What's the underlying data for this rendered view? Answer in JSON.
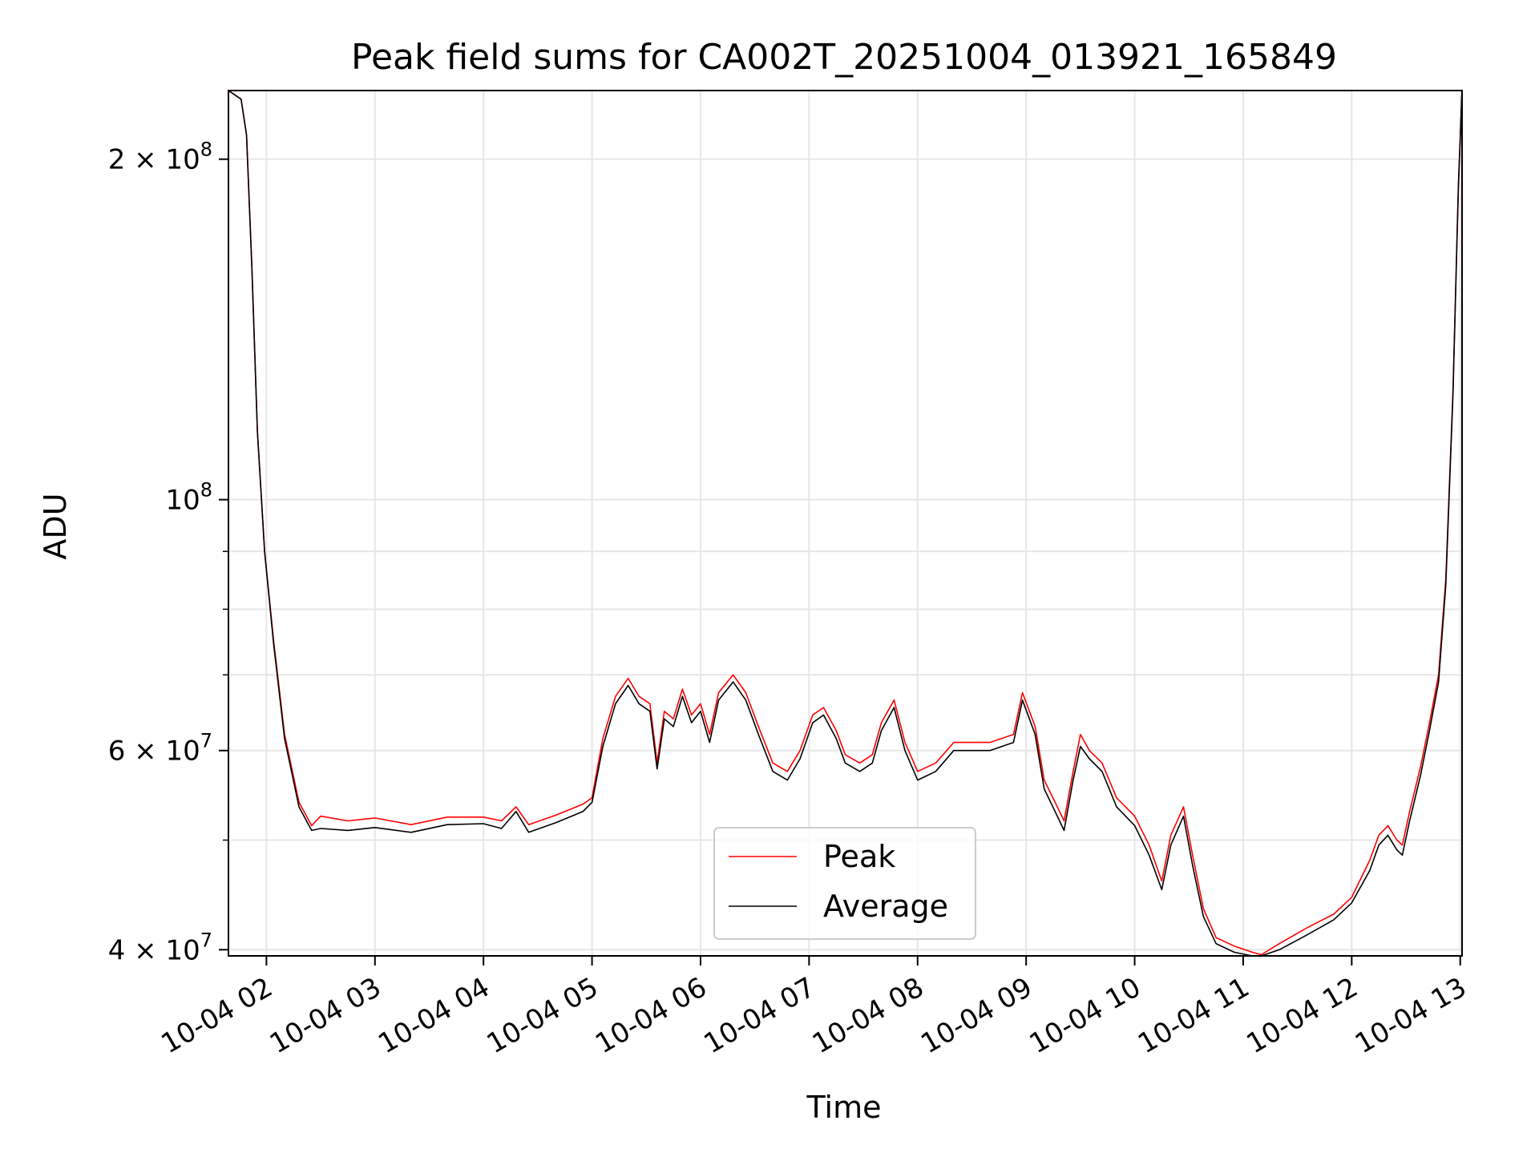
{
  "chart_data": {
    "type": "line",
    "title": "Peak field sums for CA002T_20251004_013921_165849",
    "xlabel": "Time",
    "ylabel": "ADU",
    "x_type": "datetime",
    "y_scale": "log",
    "grid": true,
    "legend_position": "lower-center",
    "xlim": [
      "2025-10-04 01:39",
      "2025-10-04 13:01"
    ],
    "ylim": [
      39500000,
      230000000
    ],
    "x_ticks": [
      "2025-10-04 02:00",
      "2025-10-04 03:00",
      "2025-10-04 04:00",
      "2025-10-04 05:00",
      "2025-10-04 06:00",
      "2025-10-04 07:00",
      "2025-10-04 08:00",
      "2025-10-04 09:00",
      "2025-10-04 10:00",
      "2025-10-04 11:00",
      "2025-10-04 12:00",
      "2025-10-04 13:00"
    ],
    "x_tick_labels": [
      "10-04 02",
      "10-04 03",
      "10-04 04",
      "10-04 05",
      "10-04 06",
      "10-04 07",
      "10-04 08",
      "10-04 09",
      "10-04 10",
      "10-04 11",
      "10-04 12",
      "10-04 13"
    ],
    "y_ticks_major": [
      {
        "value": 40000000,
        "mantissa": "4",
        "exponent": "7"
      },
      {
        "value": 60000000,
        "mantissa": "6",
        "exponent": "7"
      },
      {
        "value": 100000000,
        "mantissa": "",
        "exponent": "8"
      },
      {
        "value": 200000000,
        "mantissa": "2",
        "exponent": "8"
      }
    ],
    "y_ticks_minor": [
      50000000,
      70000000,
      80000000,
      90000000
    ],
    "series": [
      {
        "name": "Peak",
        "color": "#ff0000",
        "points": [
          [
            "2025-10-04 01:39",
            230000000
          ],
          [
            "2025-10-04 01:46",
            226000000
          ],
          [
            "2025-10-04 01:49",
            210000000
          ],
          [
            "2025-10-04 01:52",
            160000000
          ],
          [
            "2025-10-04 01:55",
            115000000
          ],
          [
            "2025-10-04 01:59",
            90000000
          ],
          [
            "2025-10-04 02:04",
            75000000
          ],
          [
            "2025-10-04 02:10",
            62000000
          ],
          [
            "2025-10-04 02:18",
            54000000
          ],
          [
            "2025-10-04 02:25",
            51500000
          ],
          [
            "2025-10-04 02:30",
            52500000
          ],
          [
            "2025-10-04 02:45",
            52000000
          ],
          [
            "2025-10-04 03:00",
            52300000
          ],
          [
            "2025-10-04 03:20",
            51600000
          ],
          [
            "2025-10-04 03:40",
            52400000
          ],
          [
            "2025-10-04 04:00",
            52400000
          ],
          [
            "2025-10-04 04:10",
            52000000
          ],
          [
            "2025-10-04 04:18",
            53500000
          ],
          [
            "2025-10-04 04:25",
            51600000
          ],
          [
            "2025-10-04 04:40",
            52600000
          ],
          [
            "2025-10-04 04:55",
            53800000
          ],
          [
            "2025-10-04 05:00",
            54500000
          ],
          [
            "2025-10-04 05:06",
            61500000
          ],
          [
            "2025-10-04 05:13",
            67000000
          ],
          [
            "2025-10-04 05:20",
            69500000
          ],
          [
            "2025-10-04 05:26",
            67000000
          ],
          [
            "2025-10-04 05:32",
            66000000
          ],
          [
            "2025-10-04 05:36",
            58500000
          ],
          [
            "2025-10-04 05:40",
            65000000
          ],
          [
            "2025-10-04 05:45",
            64000000
          ],
          [
            "2025-10-04 05:50",
            68000000
          ],
          [
            "2025-10-04 05:55",
            64500000
          ],
          [
            "2025-10-04 06:00",
            66000000
          ],
          [
            "2025-10-04 06:05",
            62000000
          ],
          [
            "2025-10-04 06:10",
            67500000
          ],
          [
            "2025-10-04 06:18",
            70000000
          ],
          [
            "2025-10-04 06:25",
            67500000
          ],
          [
            "2025-10-04 06:32",
            63000000
          ],
          [
            "2025-10-04 06:40",
            58500000
          ],
          [
            "2025-10-04 06:48",
            57500000
          ],
          [
            "2025-10-04 06:55",
            60000000
          ],
          [
            "2025-10-04 07:02",
            64500000
          ],
          [
            "2025-10-04 07:08",
            65500000
          ],
          [
            "2025-10-04 07:15",
            62500000
          ],
          [
            "2025-10-04 07:20",
            59500000
          ],
          [
            "2025-10-04 07:28",
            58500000
          ],
          [
            "2025-10-04 07:35",
            59500000
          ],
          [
            "2025-10-04 07:40",
            63500000
          ],
          [
            "2025-10-04 07:47",
            66500000
          ],
          [
            "2025-10-04 07:53",
            61000000
          ],
          [
            "2025-10-04 08:00",
            57500000
          ],
          [
            "2025-10-04 08:10",
            58500000
          ],
          [
            "2025-10-04 08:20",
            61000000
          ],
          [
            "2025-10-04 08:40",
            61000000
          ],
          [
            "2025-10-04 08:53",
            62000000
          ],
          [
            "2025-10-04 08:58",
            67500000
          ],
          [
            "2025-10-04 09:05",
            63000000
          ],
          [
            "2025-10-04 09:10",
            56500000
          ],
          [
            "2025-10-04 09:16",
            54000000
          ],
          [
            "2025-10-04 09:21",
            52000000
          ],
          [
            "2025-10-04 09:26",
            57500000
          ],
          [
            "2025-10-04 09:30",
            62000000
          ],
          [
            "2025-10-04 09:35",
            60000000
          ],
          [
            "2025-10-04 09:42",
            58500000
          ],
          [
            "2025-10-04 09:50",
            54500000
          ],
          [
            "2025-10-04 10:00",
            52500000
          ],
          [
            "2025-10-04 10:08",
            49500000
          ],
          [
            "2025-10-04 10:15",
            46000000
          ],
          [
            "2025-10-04 10:20",
            50500000
          ],
          [
            "2025-10-04 10:27",
            53500000
          ],
          [
            "2025-10-04 10:32",
            48500000
          ],
          [
            "2025-10-04 10:38",
            43500000
          ],
          [
            "2025-10-04 10:45",
            41000000
          ],
          [
            "2025-10-04 10:55",
            40300000
          ],
          [
            "2025-10-04 11:05",
            39800000
          ],
          [
            "2025-10-04 11:10",
            39600000
          ],
          [
            "2025-10-04 11:20",
            40500000
          ],
          [
            "2025-10-04 11:35",
            41800000
          ],
          [
            "2025-10-04 11:50",
            43000000
          ],
          [
            "2025-10-04 12:00",
            44500000
          ],
          [
            "2025-10-04 12:10",
            48000000
          ],
          [
            "2025-10-04 12:15",
            50500000
          ],
          [
            "2025-10-04 12:20",
            51500000
          ],
          [
            "2025-10-04 12:25",
            50000000
          ],
          [
            "2025-10-04 12:28",
            49500000
          ],
          [
            "2025-10-04 12:32",
            53000000
          ],
          [
            "2025-10-04 12:38",
            58000000
          ],
          [
            "2025-10-04 12:43",
            63500000
          ],
          [
            "2025-10-04 12:48",
            70000000
          ],
          [
            "2025-10-04 12:52",
            85000000
          ],
          [
            "2025-10-04 12:56",
            125000000
          ],
          [
            "2025-10-04 12:59",
            190000000
          ],
          [
            "2025-10-04 13:01",
            230000000
          ]
        ]
      },
      {
        "name": "Average",
        "color": "#000000",
        "points": [
          [
            "2025-10-04 01:39",
            230000000
          ],
          [
            "2025-10-04 01:46",
            226000000
          ],
          [
            "2025-10-04 01:49",
            210000000
          ],
          [
            "2025-10-04 01:52",
            160000000
          ],
          [
            "2025-10-04 01:55",
            115000000
          ],
          [
            "2025-10-04 01:59",
            90000000
          ],
          [
            "2025-10-04 02:04",
            74500000
          ],
          [
            "2025-10-04 02:10",
            61500000
          ],
          [
            "2025-10-04 02:18",
            53500000
          ],
          [
            "2025-10-04 02:25",
            51000000
          ],
          [
            "2025-10-04 02:30",
            51200000
          ],
          [
            "2025-10-04 02:45",
            51000000
          ],
          [
            "2025-10-04 03:00",
            51300000
          ],
          [
            "2025-10-04 03:20",
            50800000
          ],
          [
            "2025-10-04 03:40",
            51600000
          ],
          [
            "2025-10-04 04:00",
            51700000
          ],
          [
            "2025-10-04 04:10",
            51200000
          ],
          [
            "2025-10-04 04:18",
            53000000
          ],
          [
            "2025-10-04 04:25",
            50800000
          ],
          [
            "2025-10-04 04:40",
            51800000
          ],
          [
            "2025-10-04 04:55",
            53000000
          ],
          [
            "2025-10-04 05:00",
            54000000
          ],
          [
            "2025-10-04 05:06",
            60500000
          ],
          [
            "2025-10-04 05:13",
            66000000
          ],
          [
            "2025-10-04 05:20",
            68500000
          ],
          [
            "2025-10-04 05:26",
            66000000
          ],
          [
            "2025-10-04 05:32",
            65000000
          ],
          [
            "2025-10-04 05:36",
            57800000
          ],
          [
            "2025-10-04 05:40",
            64000000
          ],
          [
            "2025-10-04 05:45",
            63000000
          ],
          [
            "2025-10-04 05:50",
            67000000
          ],
          [
            "2025-10-04 05:55",
            63500000
          ],
          [
            "2025-10-04 06:00",
            65000000
          ],
          [
            "2025-10-04 06:05",
            61000000
          ],
          [
            "2025-10-04 06:10",
            66500000
          ],
          [
            "2025-10-04 06:18",
            69000000
          ],
          [
            "2025-10-04 06:25",
            66500000
          ],
          [
            "2025-10-04 06:32",
            62000000
          ],
          [
            "2025-10-04 06:40",
            57500000
          ],
          [
            "2025-10-04 06:48",
            56500000
          ],
          [
            "2025-10-04 06:55",
            59000000
          ],
          [
            "2025-10-04 07:02",
            63500000
          ],
          [
            "2025-10-04 07:08",
            64500000
          ],
          [
            "2025-10-04 07:15",
            61500000
          ],
          [
            "2025-10-04 07:20",
            58500000
          ],
          [
            "2025-10-04 07:28",
            57500000
          ],
          [
            "2025-10-04 07:35",
            58500000
          ],
          [
            "2025-10-04 07:40",
            62500000
          ],
          [
            "2025-10-04 07:47",
            65500000
          ],
          [
            "2025-10-04 07:53",
            60000000
          ],
          [
            "2025-10-04 08:00",
            56500000
          ],
          [
            "2025-10-04 08:10",
            57500000
          ],
          [
            "2025-10-04 08:20",
            60000000
          ],
          [
            "2025-10-04 08:40",
            60000000
          ],
          [
            "2025-10-04 08:53",
            61000000
          ],
          [
            "2025-10-04 08:58",
            66500000
          ],
          [
            "2025-10-04 09:05",
            62000000
          ],
          [
            "2025-10-04 09:10",
            55500000
          ],
          [
            "2025-10-04 09:16",
            53000000
          ],
          [
            "2025-10-04 09:21",
            51000000
          ],
          [
            "2025-10-04 09:26",
            56500000
          ],
          [
            "2025-10-04 09:30",
            60500000
          ],
          [
            "2025-10-04 09:35",
            59000000
          ],
          [
            "2025-10-04 09:42",
            57500000
          ],
          [
            "2025-10-04 09:50",
            53500000
          ],
          [
            "2025-10-04 10:00",
            51500000
          ],
          [
            "2025-10-04 10:08",
            48500000
          ],
          [
            "2025-10-04 10:15",
            45200000
          ],
          [
            "2025-10-04 10:20",
            49500000
          ],
          [
            "2025-10-04 10:27",
            52500000
          ],
          [
            "2025-10-04 10:32",
            47500000
          ],
          [
            "2025-10-04 10:38",
            42800000
          ],
          [
            "2025-10-04 10:45",
            40500000
          ],
          [
            "2025-10-04 10:55",
            39800000
          ],
          [
            "2025-10-04 11:05",
            39500000
          ],
          [
            "2025-10-04 11:10",
            39500000
          ],
          [
            "2025-10-04 11:20",
            40000000
          ],
          [
            "2025-10-04 11:35",
            41200000
          ],
          [
            "2025-10-04 11:50",
            42500000
          ],
          [
            "2025-10-04 12:00",
            44000000
          ],
          [
            "2025-10-04 12:10",
            47000000
          ],
          [
            "2025-10-04 12:15",
            49500000
          ],
          [
            "2025-10-04 12:20",
            50500000
          ],
          [
            "2025-10-04 12:25",
            49000000
          ],
          [
            "2025-10-04 12:28",
            48500000
          ],
          [
            "2025-10-04 12:32",
            52000000
          ],
          [
            "2025-10-04 12:38",
            57000000
          ],
          [
            "2025-10-04 12:43",
            62500000
          ],
          [
            "2025-10-04 12:48",
            69000000
          ],
          [
            "2025-10-04 12:52",
            84000000
          ],
          [
            "2025-10-04 12:56",
            124000000
          ],
          [
            "2025-10-04 12:59",
            190000000
          ],
          [
            "2025-10-04 13:01",
            230000000
          ]
        ]
      }
    ]
  }
}
